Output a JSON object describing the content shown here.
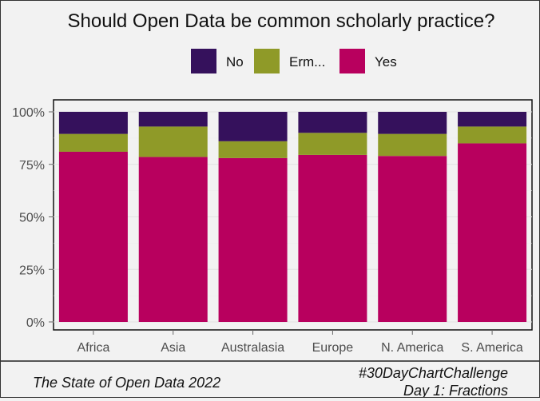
{
  "chart_data": {
    "type": "bar",
    "stacked": true,
    "title": "Should Open Data be common scholarly practice?",
    "categories": [
      "Africa",
      "Asia",
      "Australasia",
      "Europe",
      "N. America",
      "S. America"
    ],
    "series": [
      {
        "name": "Yes",
        "color": "#b8005e",
        "values": [
          81,
          78.5,
          78,
          79.5,
          79,
          85
        ]
      },
      {
        "name": "Erm...",
        "color": "#8f9a28",
        "values": [
          8.5,
          14.5,
          8,
          10.5,
          10.5,
          8
        ]
      },
      {
        "name": "No",
        "color": "#35115c",
        "values": [
          10.5,
          7,
          14,
          10,
          10.5,
          7
        ]
      }
    ],
    "legend_order": [
      "No",
      "Erm...",
      "Yes"
    ],
    "legend_position": "top",
    "y_ticks": [
      "0%",
      "25%",
      "50%",
      "75%",
      "100%"
    ],
    "ylim": [
      0,
      100
    ],
    "grid": true
  },
  "caption_left": "The State of Open Data 2022",
  "caption_right_line1": "#30DayChartChallenge",
  "caption_right_line2": "Day 1: Fractions"
}
